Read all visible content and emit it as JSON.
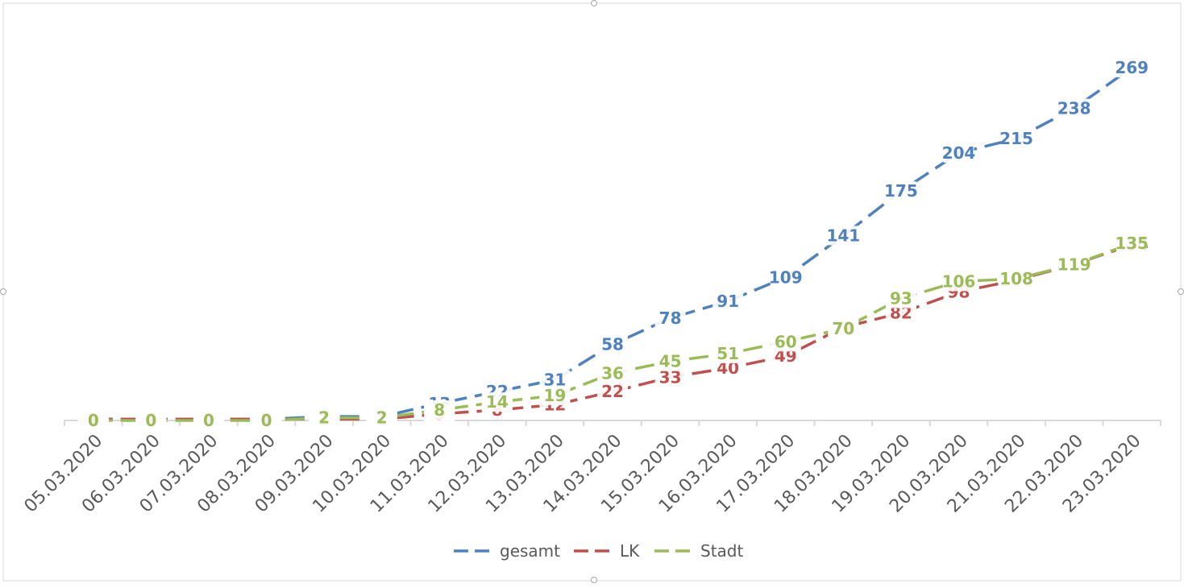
{
  "chart_data": {
    "type": "line",
    "title": "",
    "xlabel": "",
    "ylabel": "",
    "ylim": [
      0,
      290
    ],
    "grid": false,
    "legend_position": "bottom",
    "line_style": "dashed",
    "data_labels": true,
    "categories": [
      "05.03.2020",
      "06.03.2020",
      "07.03.2020",
      "08.03.2020",
      "09.03.2020",
      "10.03.2020",
      "11.03.2020",
      "12.03.2020",
      "13.03.2020",
      "14.03.2020",
      "15.03.2020",
      "16.03.2020",
      "17.03.2020",
      "18.03.2020",
      "19.03.2020",
      "20.03.2020",
      "21.03.2020",
      "22.03.2020",
      "23.03.2020"
    ],
    "series": [
      {
        "name": "gesamt",
        "color": "#4F81BD",
        "values": [
          1,
          1,
          1,
          1,
          3,
          3,
          13,
          22,
          31,
          58,
          78,
          91,
          109,
          141,
          175,
          204,
          215,
          238,
          269
        ]
      },
      {
        "name": "LK",
        "color": "#C0504D",
        "values": [
          1,
          1,
          1,
          1,
          1,
          1,
          5,
          8,
          12,
          22,
          33,
          40,
          49,
          71,
          82,
          98,
          107,
          119,
          134
        ]
      },
      {
        "name": "Stadt",
        "color": "#9BBB59",
        "values": [
          0,
          0,
          0,
          0,
          2,
          2,
          8,
          14,
          19,
          36,
          45,
          51,
          60,
          70,
          93,
          106,
          108,
          119,
          135
        ]
      }
    ]
  }
}
